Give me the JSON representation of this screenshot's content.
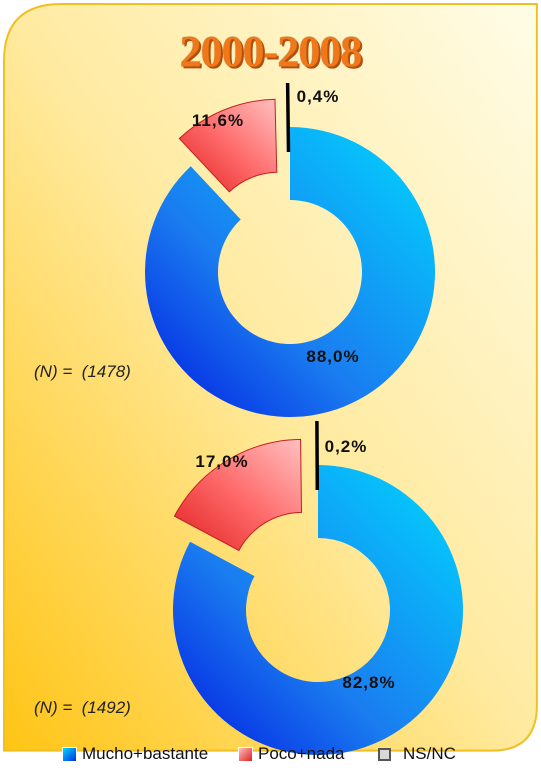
{
  "title": "2000-2008",
  "colors": {
    "mucho": "#1e90ff",
    "poco": "#f05050",
    "nsnc": "#000000",
    "title": "#f07818",
    "background_light": "#fffde6",
    "background_dark": "#ffc81e"
  },
  "chart_data": [
    {
      "type": "pie",
      "donut": true,
      "n_label": "(N) =  (1478)",
      "slices": [
        {
          "name": "Mucho+bastante",
          "value": 88.0,
          "label": "88,0%"
        },
        {
          "name": "Poco+nada",
          "value": 11.6,
          "label": "11,6%"
        },
        {
          "name": "NS/NC",
          "value": 0.4,
          "label": "0,4%"
        }
      ]
    },
    {
      "type": "pie",
      "donut": true,
      "n_label": "(N) =  (1492)",
      "slices": [
        {
          "name": "Mucho+bastante",
          "value": 82.8,
          "label": "82,8%"
        },
        {
          "name": "Poco+nada",
          "value": 17.0,
          "label": "17,0%"
        },
        {
          "name": "NS/NC",
          "value": 0.2,
          "label": "0,2%"
        }
      ]
    }
  ],
  "legend": {
    "items": [
      {
        "label": "Mucho+bastante"
      },
      {
        "label": "Poco+nada"
      },
      {
        "label": "NS/NC"
      }
    ]
  }
}
